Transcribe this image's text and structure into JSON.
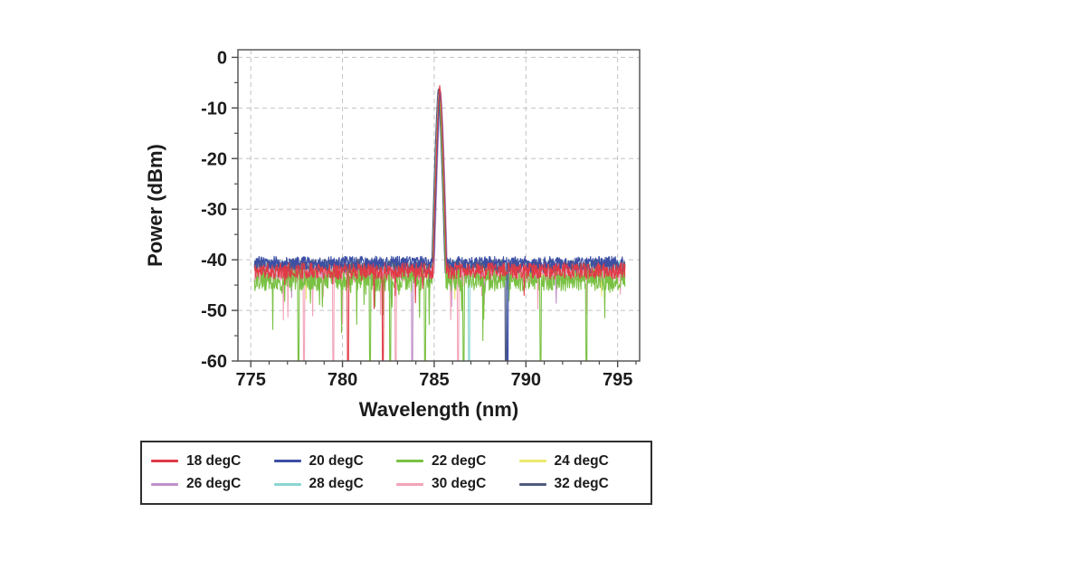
{
  "figure": {
    "background": "#ffffff",
    "text_color": "#1c1c1c"
  },
  "chart_data": {
    "type": "line",
    "title": "",
    "xlabel": "Wavelength (nm)",
    "ylabel": "Power (dBm)",
    "xlim": [
      774.3,
      796.2
    ],
    "ylim": [
      -60,
      1.5
    ],
    "xticks": [
      775,
      780,
      785,
      790,
      795
    ],
    "yticks": [
      0,
      -10,
      -20,
      -30,
      -40,
      -50,
      -60
    ],
    "x_minor_step": 1,
    "y_minor_step": 5,
    "grid": "dashed",
    "grid_color": "#c2c2c2",
    "frame_color": "#4d4d4d",
    "tick_label_color": "#1c1c1c",
    "data_x_range_nm": [
      775.2,
      795.4
    ],
    "point_step_nm": 0.025,
    "peak_annotation": {
      "wavelength_nm": 785.3,
      "power_dbm": -5.6
    },
    "noise_floor_dbm": -42,
    "noise_spikes_reach_dbm": -60,
    "legend": {
      "position": "below-chart",
      "rows": 2,
      "columns": 4,
      "border_color": "#2f2f2f"
    },
    "series": [
      {
        "name": "18 degC",
        "color": "#e03a46",
        "seed": 11,
        "noise_base": -42.2,
        "noise_amp": 1.6,
        "spike_prob": 0.008,
        "spike_depth": 8,
        "deep_spikes": [
          780.3,
          782.2
        ],
        "peak_nm": 785.3,
        "peak_dbm": -5.6
      },
      {
        "name": "20 degC",
        "color": "#3c4fa5",
        "seed": 23,
        "noise_base": -40.6,
        "noise_amp": 1.3,
        "spike_prob": 0.004,
        "spike_depth": 6,
        "deep_spikes": [
          789.0
        ],
        "peak_nm": 785.33,
        "peak_dbm": -6.6
      },
      {
        "name": "22 degC",
        "color": "#79c143",
        "seed": 37,
        "noise_base": -44.0,
        "noise_amp": 2.2,
        "spike_prob": 0.03,
        "spike_depth": 10,
        "deep_spikes": [
          777.6,
          781.5,
          782.6,
          784.5,
          786.6,
          790.8,
          793.3
        ],
        "peak_nm": 785.27,
        "peak_dbm": -6.9
      },
      {
        "name": "24 degC",
        "color": "#ece96f",
        "seed": 41,
        "noise_base": -42.0,
        "noise_amp": 1.5,
        "spike_prob": 0.004,
        "spike_depth": 6,
        "deep_spikes": [],
        "peak_nm": 785.31,
        "peak_dbm": -6.4
      },
      {
        "name": "26 degC",
        "color": "#c08fc9",
        "seed": 53,
        "noise_base": -42.5,
        "noise_amp": 1.5,
        "spike_prob": 0.006,
        "spike_depth": 8,
        "deep_spikes": [
          783.8
        ],
        "peak_nm": 785.36,
        "peak_dbm": -6.7
      },
      {
        "name": "28 degC",
        "color": "#8ad5d2",
        "seed": 67,
        "noise_base": -41.5,
        "noise_amp": 1.4,
        "spike_prob": 0.004,
        "spike_depth": 6,
        "deep_spikes": [
          786.9
        ],
        "peak_nm": 785.29,
        "peak_dbm": -6.5
      },
      {
        "name": "30 degC",
        "color": "#f2a3b8",
        "seed": 79,
        "noise_base": -42.8,
        "noise_amp": 1.7,
        "spike_prob": 0.012,
        "spike_depth": 10,
        "deep_spikes": [
          777.9,
          779.5,
          782.9,
          786.3
        ],
        "peak_nm": 785.34,
        "peak_dbm": -6.3
      },
      {
        "name": "32 degC",
        "color": "#515b7e",
        "seed": 97,
        "noise_base": -41.2,
        "noise_amp": 1.4,
        "spike_prob": 0.005,
        "spike_depth": 7,
        "deep_spikes": [
          788.9
        ],
        "peak_nm": 785.22,
        "peak_dbm": -6.2
      }
    ],
    "draw_order": [
      3,
      5,
      4,
      6,
      7,
      2,
      1,
      0
    ]
  }
}
